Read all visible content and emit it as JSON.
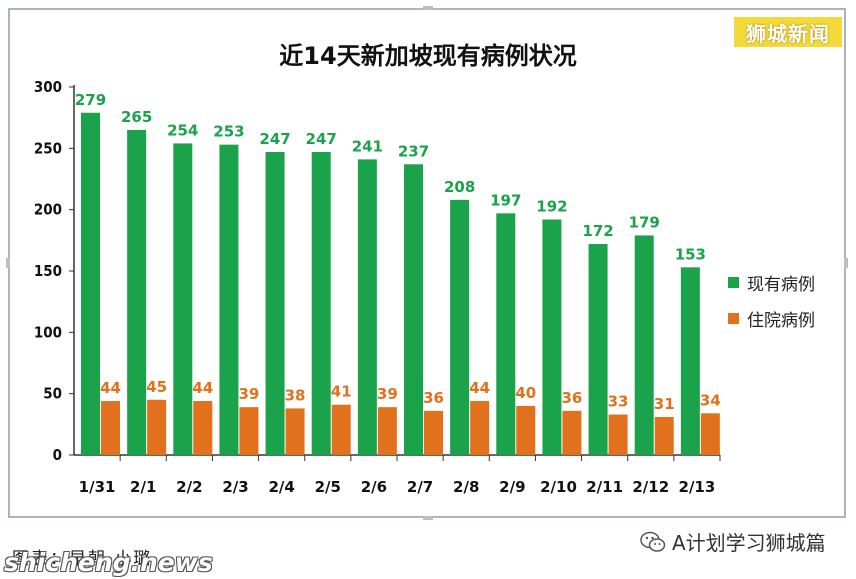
{
  "brand": "狮城新闻",
  "caption": "图表：早朝·小璐",
  "watermark": "shicheng.news",
  "wechat_account": "A计划学习狮城篇",
  "colors": {
    "series1": "#1aa34a",
    "series2": "#e2711d"
  },
  "chart_data": {
    "type": "bar",
    "title": "近14天新加坡现有病例状况",
    "categories": [
      "1/31",
      "2/1",
      "2/2",
      "2/3",
      "2/4",
      "2/5",
      "2/6",
      "2/7",
      "2/8",
      "2/9",
      "2/10",
      "2/11",
      "2/12",
      "2/13"
    ],
    "series": [
      {
        "name": "现有病例",
        "values": [
          279,
          265,
          254,
          253,
          247,
          247,
          241,
          237,
          208,
          197,
          192,
          172,
          179,
          153
        ]
      },
      {
        "name": "住院病例",
        "values": [
          44,
          45,
          44,
          39,
          38,
          41,
          39,
          36,
          44,
          40,
          36,
          33,
          31,
          34
        ]
      }
    ],
    "ylim": [
      0,
      300
    ],
    "yticks": [
      0,
      50,
      100,
      150,
      200,
      250,
      300
    ],
    "xlabel": "",
    "ylabel": "",
    "grid": false,
    "legend": "right",
    "data_labels": true
  }
}
